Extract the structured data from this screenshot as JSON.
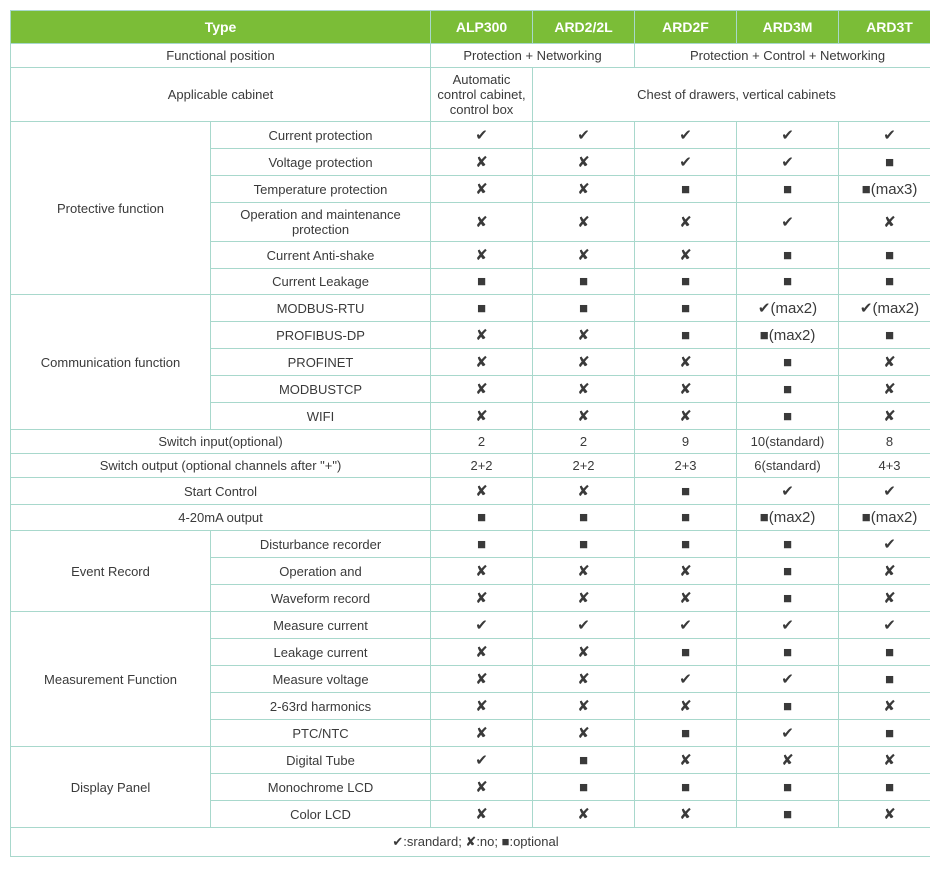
{
  "colors": {
    "header_bg": "#7bbd37",
    "header_text": "#ffffff",
    "cell_border": "#a8d8cc",
    "cell_text": "#3a3a3a",
    "background": "#ffffff"
  },
  "symbols": {
    "check": "✔",
    "cross": "✘",
    "square": "■"
  },
  "header": {
    "type": "Type",
    "products": [
      "ALP300",
      "ARD2/2L",
      "ARD2F",
      "ARD3M",
      "ARD3T"
    ]
  },
  "functional_position": {
    "label": "Functional position",
    "span1": "Protection + Networking",
    "span2": "Protection + Control + Networking"
  },
  "applicable_cabinet": {
    "label": "Applicable cabinet",
    "col1": "Automatic control cabinet, control box",
    "span2": "Chest of drawers, vertical cabinets"
  },
  "protective_function": {
    "label": "Protective function",
    "rows": [
      {
        "label": "Current protection",
        "v": [
          "✔",
          "✔",
          "✔",
          "✔",
          "✔"
        ]
      },
      {
        "label": "Voltage protection",
        "v": [
          "✘",
          "✘",
          "✔",
          "✔",
          "■"
        ]
      },
      {
        "label": "Temperature protection",
        "v": [
          "✘",
          "✘",
          "■",
          "■",
          "■(max3)"
        ]
      },
      {
        "label": "Operation and maintenance protection",
        "v": [
          "✘",
          "✘",
          "✘",
          "✔",
          "✘"
        ]
      },
      {
        "label": "Current Anti-shake",
        "v": [
          "✘",
          "✘",
          "✘",
          "■",
          "■"
        ]
      },
      {
        "label": "Current Leakage",
        "v": [
          "■",
          "■",
          "■",
          "■",
          "■"
        ]
      }
    ]
  },
  "communication_function": {
    "label": "Communication function",
    "rows": [
      {
        "label": "MODBUS-RTU",
        "v": [
          "■",
          "■",
          "■",
          "✔(max2)",
          "✔(max2)"
        ]
      },
      {
        "label": "PROFIBUS-DP",
        "v": [
          "✘",
          "✘",
          "■",
          "■(max2)",
          "■"
        ]
      },
      {
        "label": "PROFINET",
        "v": [
          "✘",
          "✘",
          "✘",
          "■",
          "✘"
        ]
      },
      {
        "label": "MODBUSTCP",
        "v": [
          "✘",
          "✘",
          "✘",
          "■",
          "✘"
        ]
      },
      {
        "label": "WIFI",
        "v": [
          "✘",
          "✘",
          "✘",
          "■",
          "✘"
        ]
      }
    ]
  },
  "switch_input": {
    "label": "Switch input(optional)",
    "v": [
      "2",
      "2",
      "9",
      "10(standard)",
      "8"
    ]
  },
  "switch_output": {
    "label": "Switch output (optional channels after \"+\")",
    "v": [
      "2+2",
      "2+2",
      "2+3",
      "6(standard)",
      "4+3"
    ]
  },
  "start_control": {
    "label": "Start Control",
    "v": [
      "✘",
      "✘",
      "■",
      "✔",
      "✔"
    ]
  },
  "output_4_20": {
    "label": "4-20mA output",
    "v": [
      "■",
      "■",
      "■",
      "■(max2)",
      "■(max2)"
    ]
  },
  "event_record": {
    "label": "Event Record",
    "rows": [
      {
        "label": "Disturbance recorder",
        "v": [
          "■",
          "■",
          "■",
          "■",
          "✔"
        ]
      },
      {
        "label": "Operation and",
        "v": [
          "✘",
          "✘",
          "✘",
          "■",
          "✘"
        ]
      },
      {
        "label": "Waveform record",
        "v": [
          "✘",
          "✘",
          "✘",
          "■",
          "✘"
        ]
      }
    ]
  },
  "measurement_function": {
    "label": "Measurement Function",
    "rows": [
      {
        "label": "Measure current",
        "v": [
          "✔",
          "✔",
          "✔",
          "✔",
          "✔"
        ]
      },
      {
        "label": "Leakage current",
        "v": [
          "✘",
          "✘",
          "■",
          "■",
          "■"
        ]
      },
      {
        "label": "Measure voltage",
        "v": [
          "✘",
          "✘",
          "✔",
          "✔",
          "■"
        ]
      },
      {
        "label": "2-63rd harmonics",
        "v": [
          "✘",
          "✘",
          "✘",
          "■",
          "✘"
        ]
      },
      {
        "label": "PTC/NTC",
        "v": [
          "✘",
          "✘",
          "■",
          "✔",
          "■"
        ]
      }
    ]
  },
  "display_panel": {
    "label": "Display Panel",
    "rows": [
      {
        "label": "Digital Tube",
        "v": [
          "✔",
          "■",
          "✘",
          "✘",
          "✘"
        ]
      },
      {
        "label": "Monochrome LCD",
        "v": [
          "✘",
          "■",
          "■",
          "■",
          "■"
        ]
      },
      {
        "label": "Color LCD",
        "v": [
          "✘",
          "✘",
          "✘",
          "■",
          "✘"
        ]
      }
    ]
  },
  "legend": "✔:srandard;  ✘:no;  ■:optional"
}
